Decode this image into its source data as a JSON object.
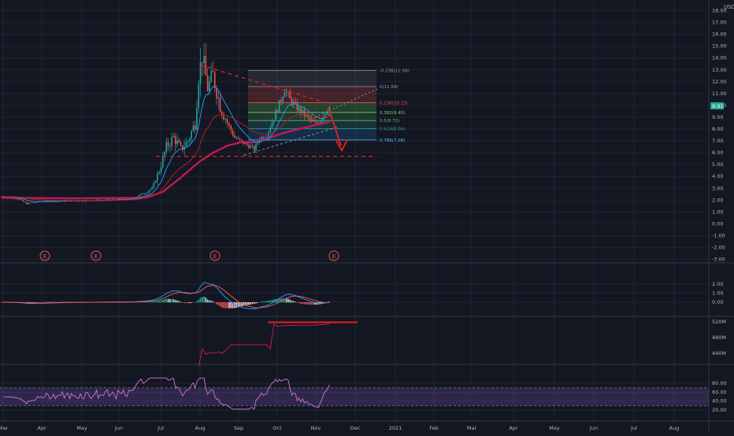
{
  "currency": "USD",
  "current_price": "9.91",
  "colors": {
    "bg": "#131722",
    "grid": "#1f2431",
    "up": "#26a69a",
    "down": "#ef5350",
    "ma_long": "#c2185b",
    "ma_short": "#ef5350",
    "ema": "#2196f3",
    "axis_text": "#b2b5be",
    "macd": "#2196f3",
    "signal": "#ef5350",
    "rsi": "#c56cd0",
    "rsi_band": "#7e57c2",
    "annot": "#e02020"
  },
  "chart_data": [
    {
      "type": "candlestick",
      "panel": "price",
      "yaxis_ticks": [
        18.0,
        17.0,
        16.0,
        15.0,
        14.0,
        13.0,
        12.0,
        11.0,
        10.0,
        9.0,
        8.0,
        7.0,
        6.0,
        5.0,
        4.0,
        3.0,
        2.0,
        1.0,
        0.0,
        -1.0,
        -2.0,
        -3.0
      ],
      "ylim": [
        -3.0,
        18.0
      ],
      "xaxis_labels": [
        "Mar",
        "Apr",
        "May",
        "Jun",
        "Jul",
        "Aug",
        "Sep",
        "Oct",
        "Nov",
        "Dec",
        "2021",
        "Feb",
        "Mar",
        "Apr",
        "May",
        "Jun",
        "Jul",
        "Aug"
      ],
      "price_anchors": [
        [
          0,
          2.3
        ],
        [
          8,
          2.2
        ],
        [
          14,
          1.7
        ],
        [
          22,
          1.9
        ],
        [
          40,
          1.95
        ],
        [
          60,
          2.0
        ],
        [
          72,
          2.1
        ],
        [
          80,
          2.6
        ],
        [
          84,
          3.0
        ],
        [
          88,
          4.5
        ],
        [
          92,
          6.5
        ],
        [
          96,
          7.3
        ],
        [
          100,
          6.3
        ],
        [
          104,
          7.0
        ],
        [
          108,
          8.5
        ],
        [
          110,
          12.5
        ],
        [
          112,
          14.2
        ],
        [
          115,
          11.5
        ],
        [
          118,
          12.5
        ],
        [
          122,
          10.0
        ],
        [
          126,
          8.5
        ],
        [
          130,
          7.3
        ],
        [
          134,
          6.9
        ],
        [
          138,
          6.6
        ],
        [
          141,
          6.3
        ],
        [
          144,
          7.2
        ],
        [
          148,
          7.5
        ],
        [
          152,
          9.0
        ],
        [
          156,
          10.5
        ],
        [
          158,
          11.4
        ],
        [
          161,
          10.5
        ],
        [
          165,
          9.8
        ],
        [
          169,
          9.2
        ],
        [
          172,
          8.8
        ],
        [
          175,
          8.4
        ],
        [
          178,
          8.8
        ],
        [
          181,
          9.5
        ],
        [
          183,
          9.91
        ]
      ],
      "ma_long_anchors": [
        [
          0,
          2.2
        ],
        [
          40,
          2.15
        ],
        [
          80,
          2.2
        ],
        [
          90,
          2.7
        ],
        [
          100,
          3.9
        ],
        [
          110,
          5.2
        ],
        [
          118,
          6.0
        ],
        [
          126,
          6.6
        ],
        [
          134,
          6.9
        ],
        [
          142,
          6.9
        ],
        [
          150,
          7.3
        ],
        [
          158,
          7.7
        ],
        [
          166,
          8.0
        ],
        [
          174,
          8.3
        ],
        [
          183,
          8.6
        ]
      ],
      "fib_levels": [
        {
          "label": "-0.236(12.94)",
          "value": 12.94,
          "color": "#9598a1"
        },
        {
          "label": "0(11.59)",
          "value": 11.59,
          "color": "#9598a1"
        },
        {
          "label": "0.236(10.23)",
          "value": 10.23,
          "color": "#ef5350"
        },
        {
          "label": "0.382(9.40)",
          "value": 9.4,
          "color": "#81c784"
        },
        {
          "label": "0.5(8.72)",
          "value": 8.72,
          "color": "#66bb6a"
        },
        {
          "label": "0.618(8.04)",
          "value": 8.04,
          "color": "#26a69a"
        },
        {
          "label": "0.786(7.08)",
          "value": 7.08,
          "color": "#64b5f6"
        }
      ],
      "support_level": 5.7,
      "earnings_markers": [
        "E",
        "E",
        "E",
        "E"
      ]
    },
    {
      "type": "macd",
      "panel": "macd",
      "yaxis_ticks": [
        2.0,
        1.0,
        0.0
      ],
      "ylim": [
        -1.2,
        2.6
      ]
    },
    {
      "type": "line",
      "panel": "volume_like",
      "yaxis_ticks": [
        "520M",
        "480M",
        "440M"
      ],
      "ylim": [
        410,
        530
      ]
    },
    {
      "type": "line",
      "panel": "rsi",
      "yaxis_ticks": [
        80.0,
        60.0,
        40.0,
        20.0
      ],
      "ylim": [
        12,
        96
      ],
      "band": [
        30,
        70
      ]
    }
  ]
}
